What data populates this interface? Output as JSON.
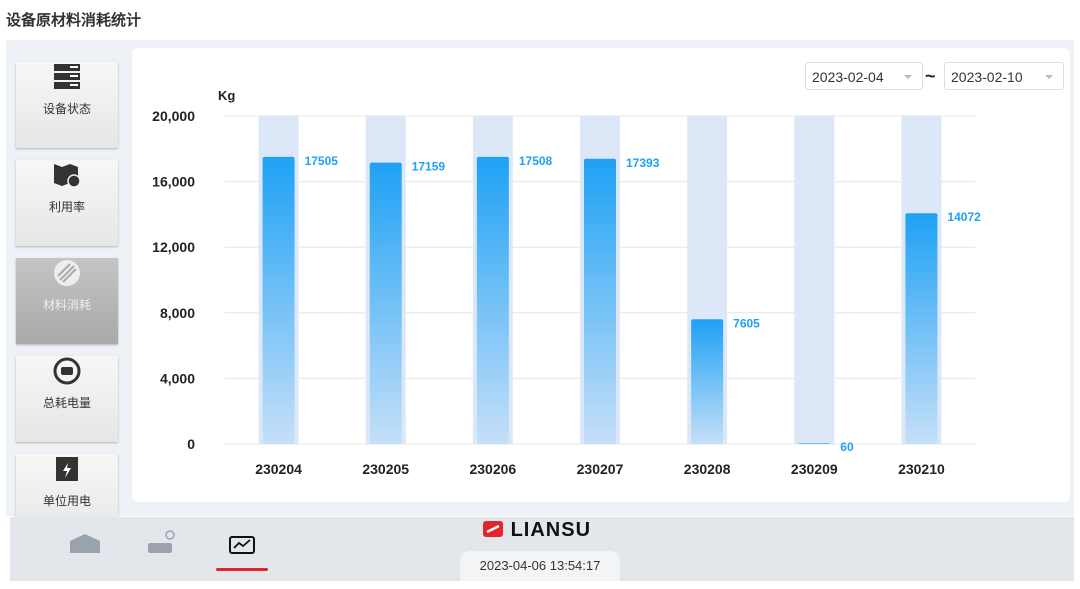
{
  "header": {
    "title": "设备原材料消耗统计"
  },
  "nav": {
    "items": [
      {
        "label": "设备状态"
      },
      {
        "label": "利用率"
      },
      {
        "label": "材料消耗"
      },
      {
        "label": "总耗电量"
      },
      {
        "label": "单位用电"
      }
    ]
  },
  "date_range": {
    "start": "2023-02-04",
    "separator": "~",
    "end": "2023-02-10"
  },
  "chart_data": {
    "type": "bar",
    "y_unit": "Kg",
    "categories": [
      "230204",
      "230205",
      "230206",
      "230207",
      "230208",
      "230209",
      "230210"
    ],
    "values": [
      17505,
      17159,
      17508,
      17393,
      7605,
      60,
      14072
    ],
    "color": "#1ea1f5",
    "band_color": "#dce8f8",
    "ylim": [
      0,
      20000
    ],
    "yticks": [
      0,
      {
        "value": 4000,
        "label": "4,000"
      },
      {
        "value": 8000,
        "label": "8,000"
      },
      {
        "value": 12000,
        "label": "12,000"
      },
      {
        "value": 16000,
        "label": "16,000"
      },
      {
        "value": 20000,
        "label": "20,000"
      }
    ],
    "grid": true
  },
  "footer": {
    "brand": "LIANSU",
    "datetime": "2023-04-06 13:54:17"
  }
}
